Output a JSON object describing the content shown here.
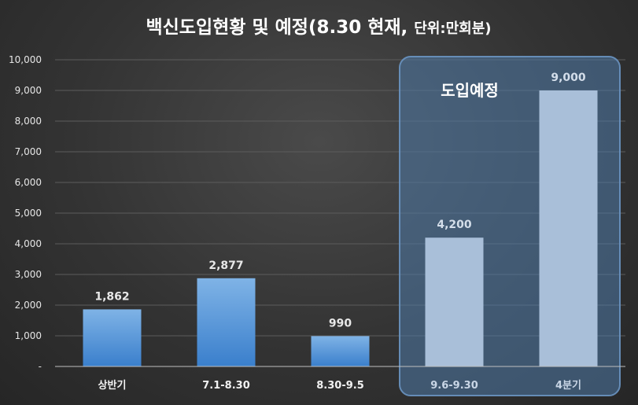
{
  "chart_data": {
    "type": "bar",
    "title": "백신도입현황 및 예정(8.30 현재, 단위:만회분)",
    "title_main": "백신도입현황 및 예정(8.30 현재, ",
    "title_unit": "단위:만회분)",
    "categories": [
      "상반기",
      "7.1-8.30",
      "8.30-9.5",
      "9.6-9.30",
      "4분기"
    ],
    "values": [
      1862,
      2877,
      990,
      4200,
      9000
    ],
    "value_labels": [
      "1,862",
      "2,877",
      "990",
      "4,200",
      "9,000"
    ],
    "planned": [
      false,
      false,
      false,
      true,
      true
    ],
    "ylim": [
      0,
      10000
    ],
    "yticks": [
      0,
      1000,
      2000,
      3000,
      4000,
      5000,
      6000,
      7000,
      8000,
      9000,
      10000
    ],
    "ytick_labels": [
      "-",
      "1,000",
      "2,000",
      "3,000",
      "4,000",
      "5,000",
      "6,000",
      "7,000",
      "8,000",
      "9,000",
      "10,000"
    ],
    "grid": true,
    "annotation": "도입예정",
    "colors": {
      "actual_bar": "#5b9bd5",
      "planned_bar": "#a9bfd9",
      "planned_box": "#4f7aa8"
    }
  }
}
